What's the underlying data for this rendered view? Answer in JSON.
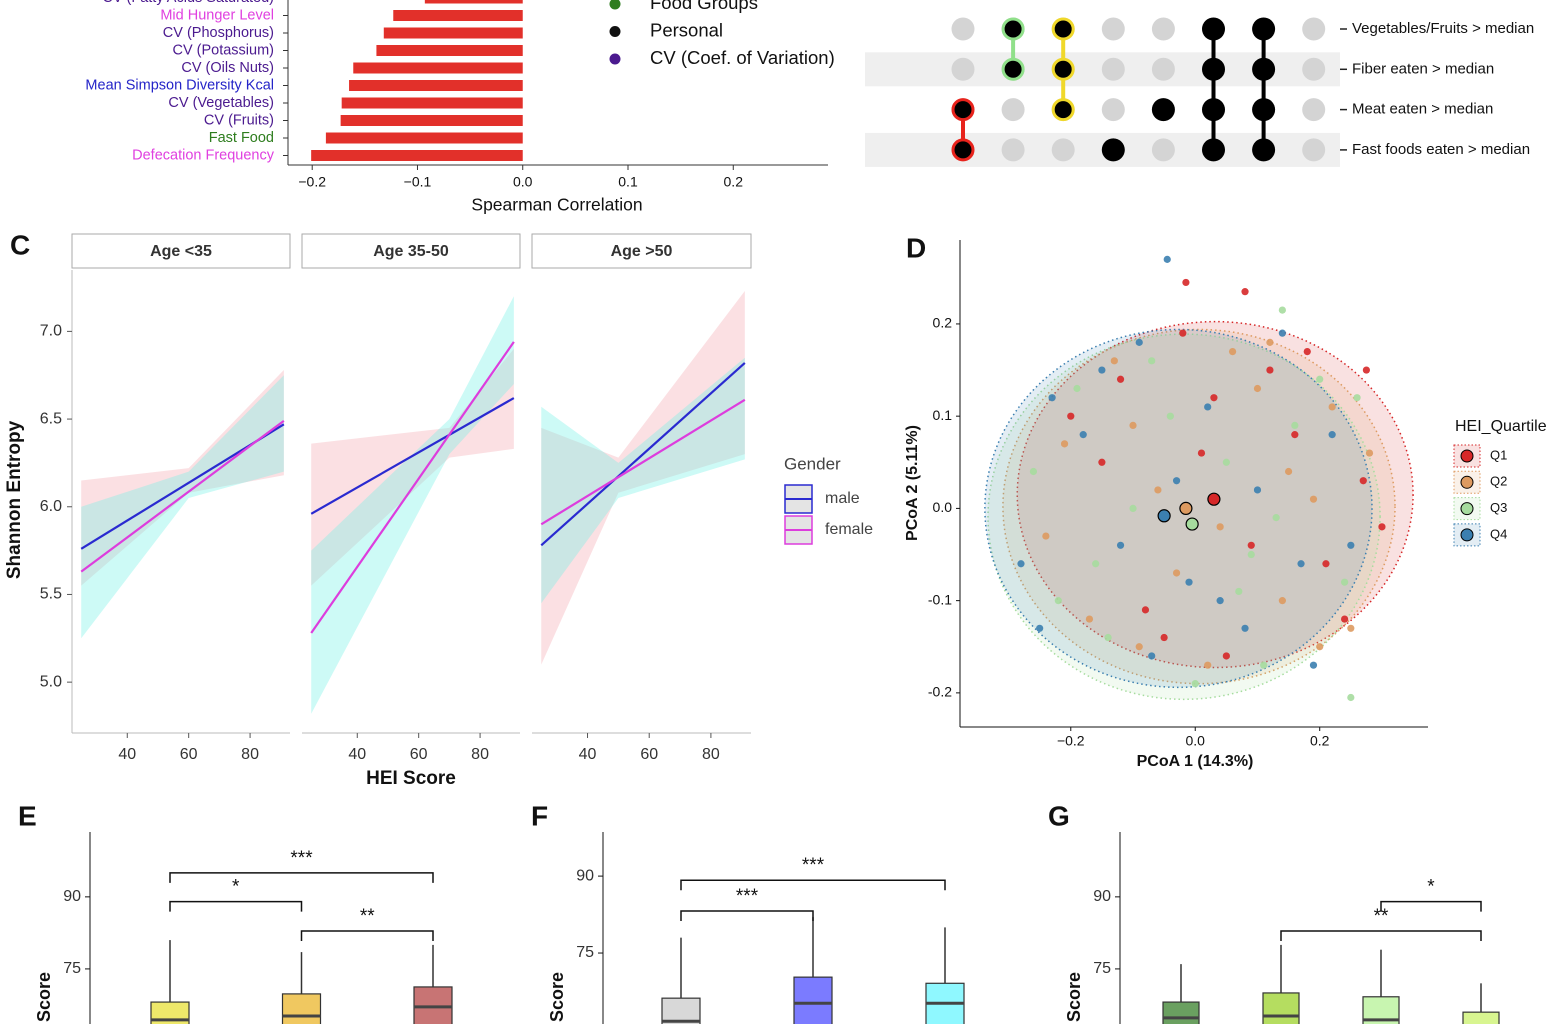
{
  "chart_data": [
    {
      "type": "hbar",
      "categories": [
        "CV (Fatty Acids Saturated)",
        "Mid Hunger Level",
        "CV (Phosphorus)",
        "CV (Potassium)",
        "CV (Oils Nuts)",
        "Mean Simpson Diversity Kcal",
        "CV (Vegetables)",
        "CV (Fruits)",
        "Fast Food",
        "Defecation Frequency"
      ],
      "values": [
        -0.093,
        -0.123,
        -0.132,
        -0.139,
        -0.161,
        -0.165,
        -0.172,
        -0.173,
        -0.187,
        -0.201
      ],
      "color": "#e2302a",
      "label_colors": [
        "#4b1a8f",
        "#e040e0",
        "#4b1a8f",
        "#4b1a8f",
        "#4b1a8f",
        "#2424c8",
        "#4b1a8f",
        "#4b1a8f",
        "#2e7d1e",
        "#e040e0"
      ],
      "xlim": [
        -0.223,
        0.29
      ],
      "xticks": [
        {
          "value": -0.2,
          "label": "−0.2"
        },
        {
          "value": -0.1,
          "label": "−0.1"
        },
        {
          "value": 0,
          "label": "0.0"
        },
        0.1,
        0.2
      ],
      "xlabel": "Spearman Correlation",
      "legend": [
        {
          "name": "Food Groups",
          "color": "#2e7d1e"
        },
        {
          "name": "Personal",
          "color": "#111111"
        },
        {
          "name": "CV (Coef. of Variation)",
          "color": "#4b1a8f"
        }
      ]
    },
    {
      "type": "upset",
      "sets": [
        "Vegetables/Fruits > median",
        "Fiber eaten > median",
        "Meat eaten > median",
        "Fast foods eaten > median"
      ],
      "intersections": [
        {
          "members": [
            2,
            3
          ],
          "color": "#e8231c"
        },
        {
          "members": [
            0,
            1
          ],
          "color": "#90e08a"
        },
        {
          "members": [
            0,
            1,
            2
          ],
          "color": "#f0d82a"
        },
        {
          "members": [
            3
          ],
          "color": "#000000"
        },
        {
          "members": [
            2
          ],
          "color": "#000000"
        },
        {
          "members": [
            0,
            1,
            2,
            3
          ],
          "color": "#000000"
        },
        {
          "members": [
            0,
            1,
            2,
            3
          ],
          "color": "#000000"
        },
        {
          "members": [],
          "color": "#000000"
        }
      ]
    },
    {
      "type": "facet_line",
      "panel": "C",
      "ylabel": "Shannon Entropy",
      "xlabel": "HEI Score",
      "legend_title": "Gender",
      "xlim": [
        22,
        93
      ],
      "xticks": [
        40,
        60,
        80
      ],
      "ylim": [
        4.71,
        7.35
      ],
      "yticks": [
        {
          "value": 5,
          "label": "5.0"
        },
        5.5,
        {
          "value": 6,
          "label": "6.0"
        },
        6.5,
        {
          "value": 7,
          "label": "7.0"
        }
      ],
      "series": [
        {
          "name": "male",
          "color": "#2a2ad0",
          "ribbon": "#f4a6b0"
        },
        {
          "name": "female",
          "color": "#dd3ddd",
          "ribbon": "#6ff0e6"
        }
      ],
      "facets": [
        {
          "title": "Age <35",
          "x": [
            25,
            91
          ],
          "values": [
            [
              5.76,
              6.47
            ],
            [
              5.63,
              6.49
            ]
          ],
          "band_x": [
            25,
            60,
            91
          ],
          "lower": [
            [
              5.55,
              6.08,
              6.18
            ],
            [
              5.25,
              6.05,
              6.2
            ]
          ],
          "upper": [
            [
              6.15,
              6.22,
              6.78
            ],
            [
              6.0,
              6.2,
              6.75
            ]
          ]
        },
        {
          "title": "Age 35-50",
          "x": [
            25,
            91
          ],
          "values": [
            [
              5.96,
              6.62
            ],
            [
              5.28,
              6.94
            ]
          ],
          "band_x": [
            25,
            70,
            91
          ],
          "lower": [
            [
              5.55,
              6.28,
              6.33
            ],
            [
              4.82,
              6.3,
              6.7
            ]
          ],
          "upper": [
            [
              6.36,
              6.45,
              6.9
            ],
            [
              5.75,
              6.5,
              7.2
            ]
          ]
        },
        {
          "title": "Age >50",
          "x": [
            25,
            91
          ],
          "values": [
            [
              5.78,
              6.82
            ],
            [
              5.9,
              6.61
            ]
          ],
          "band_x": [
            25,
            50,
            91
          ],
          "lower": [
            [
              5.1,
              6.08,
              6.3
            ],
            [
              5.45,
              6.05,
              6.27
            ]
          ],
          "upper": [
            [
              6.45,
              6.28,
              7.23
            ],
            [
              6.57,
              6.25,
              6.85
            ]
          ]
        }
      ]
    },
    {
      "type": "scatter",
      "panel": "D",
      "xlabel": "PCoA 1 (14.3%)",
      "ylabel": "PCoA 2 (5.11%)",
      "legend_title": "HEI_Quartile",
      "xlim": [
        -0.378,
        0.374
      ],
      "xticks": [
        {
          "value": -0.2,
          "label": "−0.2"
        },
        {
          "value": 0,
          "label": "0.0"
        },
        0.2
      ],
      "ylim": [
        -0.237,
        0.291
      ],
      "yticks": [
        {
          "value": -0.2,
          "label": "-0.2"
        },
        {
          "value": -0.1,
          "label": "-0.1"
        },
        {
          "value": 0,
          "label": "0.0"
        },
        0.1,
        0.2
      ],
      "series": [
        {
          "name": "Q1",
          "color": "#d62728",
          "centroid": [
            0.03,
            0.01
          ],
          "ellipse": {
            "cx": 0.032,
            "cy": 0.015,
            "rx": 0.318,
            "ry": 0.1875
          },
          "x": [
            0.03,
            -0.15,
            0.21,
            0.12,
            -0.08,
            0.27,
            0.05,
            -0.2,
            0.16,
            -0.02,
            0.24,
            0.09,
            -0.12,
            0.3,
            0.01,
            -0.05,
            0.18,
            0.275,
            0.08,
            -0.015
          ],
          "y": [
            0.12,
            0.05,
            -0.06,
            0.15,
            -0.11,
            0.03,
            -0.16,
            0.1,
            0.08,
            0.19,
            -0.12,
            -0.04,
            0.14,
            -0.02,
            0.06,
            -0.14,
            0.17,
            0.15,
            0.235,
            0.245
          ]
        },
        {
          "name": "Q2",
          "color": "#dd9a60",
          "centroid": [
            -0.015,
            0.0
          ],
          "ellipse": {
            "cx": 0.006,
            "cy": 0.002,
            "rx": 0.315,
            "ry": 0.192
          },
          "x": [
            -0.1,
            0.14,
            0.22,
            -0.24,
            0.06,
            -0.03,
            0.19,
            -0.17,
            0.28,
            0.1,
            -0.06,
            0.02,
            -0.21,
            0.25,
            0.15,
            -0.13,
            0.04,
            0.2,
            -0.09,
            0.12
          ],
          "y": [
            0.09,
            -0.1,
            0.11,
            -0.03,
            0.17,
            -0.07,
            0.01,
            -0.12,
            0.06,
            0.13,
            0.02,
            -0.17,
            0.07,
            -0.13,
            0.04,
            0.16,
            -0.02,
            -0.15,
            -0.15,
            0.18
          ]
        },
        {
          "name": "Q3",
          "color": "#a6dc9e",
          "centroid": [
            -0.005,
            -0.017
          ],
          "ellipse": {
            "cx": -0.018,
            "cy": -0.009,
            "rx": 0.315,
            "ry": 0.198
          },
          "x": [
            -0.26,
            -0.14,
            0.07,
            0.2,
            -0.04,
            0.13,
            -0.19,
            0.24,
            0.0,
            -0.1,
            0.16,
            0.26,
            -0.22,
            0.05,
            -0.07,
            0.11,
            0.25,
            0.14,
            0.09,
            -0.16
          ],
          "y": [
            0.04,
            -0.14,
            -0.09,
            0.14,
            0.1,
            -0.01,
            0.13,
            -0.08,
            -0.19,
            0.0,
            0.09,
            0.12,
            -0.1,
            0.05,
            0.16,
            -0.17,
            -0.205,
            0.215,
            -0.05,
            -0.06
          ]
        },
        {
          "name": "Q4",
          "color": "#3b7fb0",
          "centroid": [
            -0.05,
            -0.008
          ],
          "ellipse": {
            "cx": -0.027,
            "cy": 0.0,
            "rx": 0.311,
            "ry": 0.194
          },
          "x": [
            -0.28,
            -0.18,
            0.1,
            -0.07,
            0.17,
            -0.23,
            0.02,
            0.22,
            -0.12,
            0.08,
            -0.01,
            -0.25,
            0.14,
            -0.09,
            0.19,
            0.04,
            -0.045,
            -0.15,
            0.25,
            -0.03
          ],
          "y": [
            -0.06,
            0.08,
            0.02,
            -0.16,
            -0.06,
            0.12,
            0.11,
            0.08,
            -0.04,
            -0.13,
            -0.08,
            -0.13,
            0.19,
            0.18,
            -0.17,
            -0.1,
            0.27,
            0.15,
            -0.04,
            0.03
          ]
        }
      ]
    },
    {
      "type": "box",
      "panel": "E",
      "ylabel": "Score",
      "ylim": [
        55,
        103.5
      ],
      "yticks": [
        75,
        90
      ],
      "categories": [
        null,
        null,
        null
      ],
      "colors": [
        "#eee86a",
        "#f0c860",
        "#c87474"
      ],
      "q3": [
        68.1,
        69.8,
        71.25
      ],
      "median": [
        64.4,
        65.2,
        67.1
      ],
      "upper": [
        81,
        78.5,
        80
      ],
      "brackets": [
        {
          "from": 0,
          "to": 2,
          "y": 95,
          "label": "***"
        },
        {
          "from": 0,
          "to": 1,
          "y": 89,
          "label": "*"
        },
        {
          "from": 1,
          "to": 2,
          "y": 82.9,
          "label": "**"
        }
      ]
    },
    {
      "type": "box",
      "panel": "F",
      "ylabel": "Score",
      "ylim": [
        55,
        98.6
      ],
      "yticks": [
        75,
        90
      ],
      "categories": [
        null,
        null,
        null
      ],
      "colors": [
        "#d8d8d8",
        "#7b7bff",
        "#8ff8ff"
      ],
      "q3": [
        66.2,
        70.3,
        69.1
      ],
      "median": [
        61.7,
        65.2,
        65.2
      ],
      "upper": [
        78,
        82,
        80
      ],
      "brackets": [
        {
          "from": 0,
          "to": 2,
          "y": 89.2,
          "label": "***"
        },
        {
          "from": 0,
          "to": 1,
          "y": 83.2,
          "label": "***"
        }
      ]
    },
    {
      "type": "box",
      "panel": "G",
      "ylabel": "Score",
      "ylim": [
        55,
        103.5
      ],
      "yticks": [
        75,
        90
      ],
      "categories": [
        null,
        null,
        null,
        null
      ],
      "colors": [
        "#6aa060",
        "#b5dd60",
        "#c8f5b0",
        "#d8f590"
      ],
      "q3": [
        68.1,
        70,
        69.2,
        66
      ],
      "median": [
        64.8,
        65.2,
        64.4,
        62.3
      ],
      "upper": [
        76,
        80,
        79,
        72
      ],
      "brackets": [
        {
          "from": 1,
          "to": 3,
          "y": 82.9,
          "label": "**"
        },
        {
          "from": 2,
          "to": 3,
          "y": 89,
          "label": "*"
        }
      ]
    }
  ]
}
